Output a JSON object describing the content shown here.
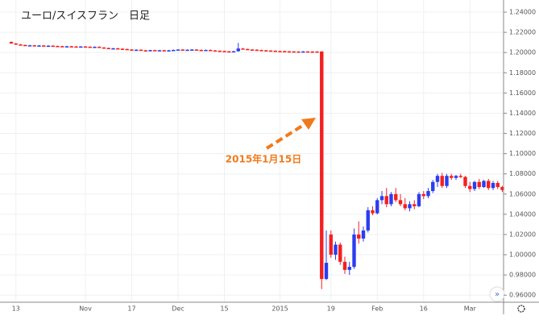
{
  "chart_data": {
    "type": "candlestick",
    "title": "ユーロ/スイスフラン　日足",
    "annotation": "2015年1月15日",
    "up_color": "#2b3df0",
    "down_color": "#f51f1f",
    "grid": true,
    "categories": [
      null,
      "13",
      null,
      null,
      null,
      null,
      null,
      null,
      null,
      null,
      null,
      null,
      null,
      null,
      null,
      null,
      "Nov",
      null,
      null,
      null,
      null,
      null,
      null,
      null,
      null,
      null,
      "17",
      null,
      null,
      null,
      null,
      null,
      null,
      null,
      null,
      null,
      "Dec",
      null,
      null,
      null,
      null,
      null,
      null,
      null,
      null,
      null,
      "15",
      null,
      null,
      null,
      null,
      null,
      null,
      null,
      null,
      null,
      null,
      null,
      "2015",
      null,
      null,
      null,
      null,
      null,
      null,
      null,
      null,
      null,
      null,
      "19",
      null,
      null,
      null,
      null,
      null,
      null,
      null,
      null,
      null,
      "Feb",
      null,
      null,
      null,
      null,
      null,
      null,
      null,
      null,
      null,
      "16",
      null,
      null,
      null,
      null,
      null,
      null,
      null,
      null,
      null,
      "Mar",
      null,
      null,
      null,
      null,
      null,
      null,
      null
    ],
    "open": [
      1.2105,
      1.209,
      1.208,
      1.2075,
      1.207,
      1.2072,
      1.2068,
      1.207,
      1.2066,
      1.2068,
      1.2065,
      1.2063,
      1.206,
      1.2062,
      1.206,
      1.2058,
      1.206,
      1.2058,
      1.2055,
      1.2057,
      1.205,
      1.2045,
      1.204,
      1.2042,
      1.2038,
      1.2035,
      1.203,
      1.2025,
      1.2028,
      1.2022,
      1.202,
      1.2024,
      1.2021,
      1.2023,
      1.2019,
      1.2022,
      1.2026,
      1.203,
      1.2025,
      1.2028,
      1.203,
      1.2026,
      1.2023,
      1.2026,
      1.2021,
      1.2018,
      1.2015,
      1.2012,
      1.201,
      1.2013,
      1.204,
      1.2035,
      1.203,
      1.2028,
      1.2025,
      1.2022,
      1.202,
      1.2018,
      1.2015,
      1.2014,
      1.2012,
      1.2011,
      1.201,
      1.201,
      1.2011,
      1.201,
      1.201,
      1.201,
      0.976,
      1.02,
      1.0,
      1.01,
      0.993,
      0.985,
      0.988,
      1.02,
      1.016,
      1.024,
      1.044,
      1.041,
      1.054,
      1.058,
      1.05,
      1.06,
      1.054,
      1.05,
      1.046,
      1.05,
      1.048,
      1.06,
      1.058,
      1.063,
      1.072,
      1.078,
      1.068,
      1.078,
      1.076,
      1.078,
      1.077,
      1.068,
      1.065,
      1.072,
      1.067,
      1.073,
      1.066,
      1.071,
      1.067
    ],
    "high": [
      1.2109,
      1.2094,
      1.2084,
      1.2079,
      1.2076,
      1.2076,
      1.2074,
      1.2074,
      1.2072,
      1.2072,
      1.2069,
      1.2067,
      1.2066,
      1.2066,
      1.2064,
      1.2064,
      1.2064,
      1.2062,
      1.2061,
      1.2061,
      1.2054,
      1.2049,
      1.2046,
      1.2046,
      1.2042,
      1.2039,
      1.2034,
      1.2032,
      1.2032,
      1.2026,
      1.2028,
      1.2028,
      1.2027,
      1.2027,
      1.2026,
      1.203,
      1.2034,
      1.2034,
      1.2032,
      1.2034,
      1.2034,
      1.203,
      1.203,
      1.203,
      1.2025,
      1.2022,
      1.2019,
      1.2016,
      1.2017,
      1.2095,
      1.2044,
      1.2039,
      1.2034,
      1.2032,
      1.2029,
      1.2026,
      1.2024,
      1.2022,
      1.2019,
      1.2018,
      1.2016,
      1.2015,
      1.2014,
      1.2015,
      1.2015,
      1.2014,
      1.2014,
      1.2015,
      1.024,
      1.024,
      1.013,
      1.012,
      0.998,
      0.993,
      1.026,
      1.033,
      1.028,
      1.047,
      1.048,
      1.056,
      1.063,
      1.066,
      1.062,
      1.066,
      1.06,
      1.056,
      1.053,
      1.054,
      1.062,
      1.063,
      1.066,
      1.074,
      1.08,
      1.081,
      1.08,
      1.08,
      1.079,
      1.08,
      1.078,
      1.072,
      1.073,
      1.075,
      1.074,
      1.075,
      1.073,
      1.073,
      1.068
    ],
    "low": [
      1.2086,
      1.2076,
      1.2071,
      1.2066,
      1.2066,
      1.2064,
      1.2064,
      1.2062,
      1.2062,
      1.2061,
      1.2059,
      1.2056,
      1.2056,
      1.2056,
      1.2054,
      1.2054,
      1.2054,
      1.2051,
      1.2051,
      1.2046,
      1.2041,
      1.2036,
      1.2036,
      1.2034,
      1.2031,
      1.2026,
      1.2021,
      1.2021,
      1.2018,
      1.2016,
      1.2016,
      1.2017,
      1.2017,
      1.2015,
      1.2015,
      1.2018,
      1.2022,
      1.2021,
      1.2021,
      1.2024,
      1.2022,
      1.2019,
      1.2019,
      1.2017,
      1.2014,
      1.2011,
      1.2008,
      1.2006,
      1.2006,
      1.2009,
      1.2031,
      1.2026,
      1.2024,
      1.2021,
      1.2018,
      1.2016,
      1.2014,
      1.2011,
      1.201,
      1.2008,
      1.2007,
      1.2006,
      1.2006,
      1.2006,
      1.2006,
      1.2006,
      1.2006,
      0.966,
      0.975,
      0.997,
      0.995,
      0.99,
      0.981,
      0.98,
      0.986,
      1.011,
      1.013,
      1.022,
      1.039,
      1.04,
      1.05,
      1.047,
      1.048,
      1.052,
      1.048,
      1.044,
      1.043,
      1.045,
      1.047,
      1.055,
      1.056,
      1.061,
      1.067,
      1.066,
      1.066,
      1.074,
      1.074,
      1.076,
      1.066,
      1.062,
      1.063,
      1.065,
      1.066,
      1.064,
      1.064,
      1.065,
      1.062
    ],
    "close": [
      1.209,
      1.208,
      1.2075,
      1.207,
      1.2072,
      1.2068,
      1.207,
      1.2066,
      1.2068,
      1.2065,
      1.2063,
      1.206,
      1.2062,
      1.206,
      1.2058,
      1.206,
      1.2058,
      1.2055,
      1.2057,
      1.205,
      1.2045,
      1.204,
      1.2042,
      1.2038,
      1.2035,
      1.203,
      1.2025,
      1.2028,
      1.2022,
      1.202,
      1.2024,
      1.2021,
      1.2023,
      1.2019,
      1.2022,
      1.2026,
      1.203,
      1.2025,
      1.2028,
      1.203,
      1.2026,
      1.2023,
      1.2026,
      1.2021,
      1.2018,
      1.2015,
      1.2012,
      1.201,
      1.2013,
      1.204,
      1.2035,
      1.203,
      1.2028,
      1.2025,
      1.2022,
      1.202,
      1.2018,
      1.2015,
      1.2014,
      1.2012,
      1.2011,
      1.201,
      1.201,
      1.2011,
      1.201,
      1.201,
      1.201,
      0.976,
      0.992,
      1.0,
      1.01,
      0.993,
      0.985,
      0.988,
      1.02,
      1.016,
      1.024,
      1.044,
      1.041,
      1.054,
      1.058,
      1.05,
      1.06,
      1.054,
      1.05,
      1.046,
      1.05,
      1.048,
      1.06,
      1.058,
      1.063,
      1.072,
      1.078,
      1.068,
      1.078,
      1.076,
      1.078,
      1.077,
      1.068,
      1.065,
      1.072,
      1.067,
      1.073,
      1.066,
      1.071,
      1.067,
      1.064
    ],
    "ylim": [
      0.953,
      1.248
    ],
    "yticks": [
      {
        "value": 0.96,
        "label": "0.96000"
      },
      {
        "value": 0.98,
        "label": "0.98000"
      },
      {
        "value": 1.0,
        "label": "1.00000"
      },
      {
        "value": 1.02,
        "label": "1.02000"
      },
      {
        "value": 1.04,
        "label": "1.04000"
      },
      {
        "value": 1.06,
        "label": "1.06000"
      },
      {
        "value": 1.08,
        "label": "1.08000"
      },
      {
        "value": 1.1,
        "label": "1.10000"
      },
      {
        "value": 1.12,
        "label": "1.12000"
      },
      {
        "value": 1.14,
        "label": "1.14000"
      },
      {
        "value": 1.16,
        "label": "1.16000"
      },
      {
        "value": 1.18,
        "label": "1.18000"
      },
      {
        "value": 1.2,
        "label": "1.20000"
      },
      {
        "value": 1.22,
        "label": "1.22000"
      },
      {
        "value": 1.24,
        "label": "1.24000"
      }
    ]
  }
}
